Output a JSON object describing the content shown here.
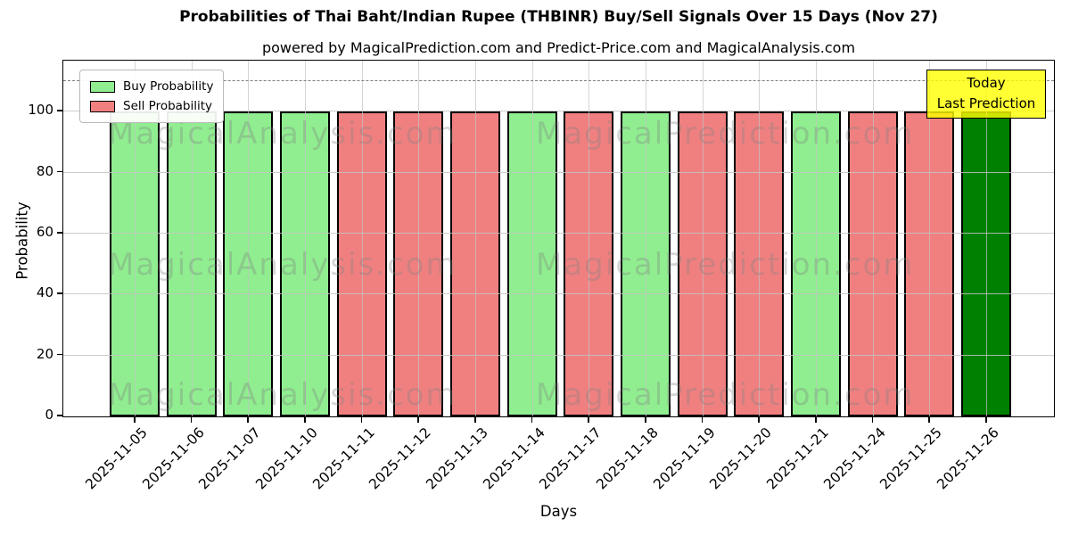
{
  "chart_data": {
    "type": "bar",
    "title": "Probabilities of Thai Baht/Indian Rupee (THBINR) Buy/Sell Signals Over 15 Days (Nov 27)",
    "subtitle": "powered by MagicalPrediction.com and Predict-Price.com and MagicalAnalysis.com",
    "xlabel": "Days",
    "ylabel": "Probability",
    "ylim": [
      0,
      116.5
    ],
    "yticks": [
      0,
      20,
      40,
      60,
      80,
      100
    ],
    "grid": true,
    "dashed_line_y": 110,
    "categories": [
      "2025-11-05",
      "2025-11-06",
      "2025-11-07",
      "2025-11-10",
      "2025-11-11",
      "2025-11-12",
      "2025-11-13",
      "2025-11-14",
      "2025-11-17",
      "2025-11-18",
      "2025-11-19",
      "2025-11-20",
      "2025-11-21",
      "2025-11-24",
      "2025-11-25",
      "2025-11-26"
    ],
    "values": [
      100,
      100,
      100,
      100,
      100,
      100,
      100,
      100,
      100,
      100,
      100,
      100,
      100,
      100,
      100,
      100
    ],
    "signals": [
      "buy",
      "buy",
      "buy",
      "buy",
      "sell",
      "sell",
      "sell",
      "buy",
      "sell",
      "buy",
      "sell",
      "sell",
      "buy",
      "sell",
      "sell",
      "last"
    ],
    "colors": {
      "buy": "#90EE90",
      "sell": "#F08080",
      "last": "#008000",
      "edge": "#000000"
    },
    "legend": {
      "position": "upper-left",
      "items": [
        {
          "label": "Buy Probability",
          "color": "#90EE90"
        },
        {
          "label": "Sell Probability",
          "color": "#F08080"
        }
      ]
    },
    "annotation": {
      "line1": "Today",
      "line2": "Last Prediction",
      "bg": "#FFFF00"
    },
    "watermarks": {
      "left": "MagicalAnalysis.com",
      "right": "MagicalPrediction.com"
    }
  }
}
